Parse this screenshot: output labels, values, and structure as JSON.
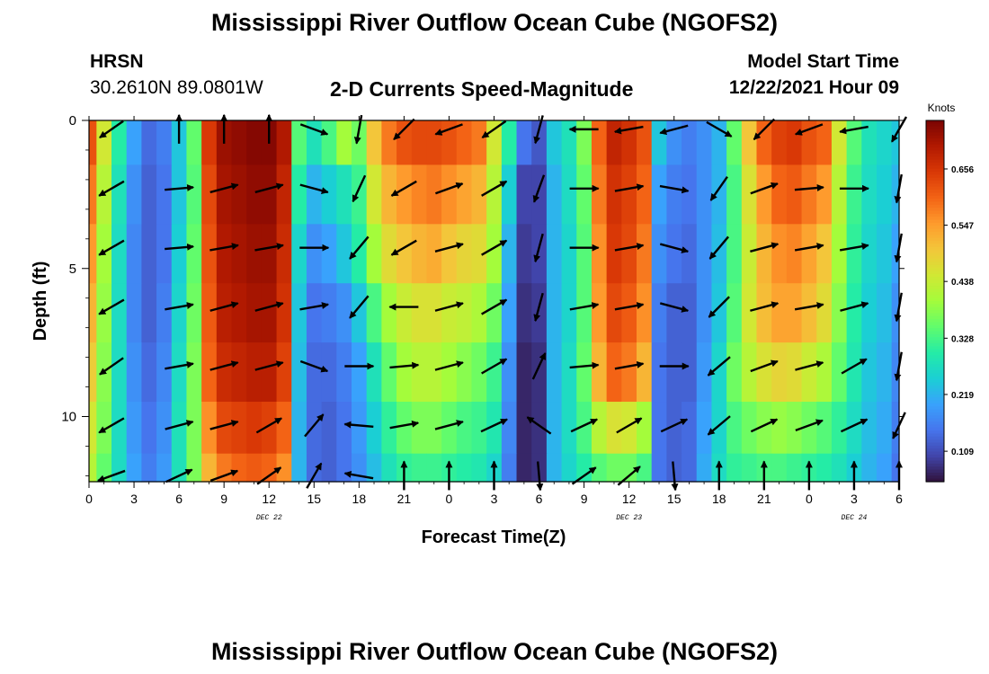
{
  "page": {
    "title": "Mississippi River Outflow Ocean Cube (NGOFS2)",
    "title_bottom": "Mississippi River Outflow Ocean Cube (NGOFS2)",
    "station_code": "HRSN",
    "station_coords": "30.2610N  89.0801W",
    "subtitle": "2-D Currents Speed-Magnitude",
    "model_start_label": "Model Start Time",
    "model_start_value": "12/22/2021 Hour 09"
  },
  "chart_data": {
    "type": "heatmap",
    "title": "2-D Currents Speed-Magnitude",
    "xlabel": "Forecast Time(Z)",
    "ylabel": "Depth (ft)",
    "xlim": [
      0,
      54
    ],
    "ylim": [
      0,
      12.2
    ],
    "y_inverted": true,
    "x_ticks": [
      0,
      3,
      6,
      9,
      12,
      15,
      18,
      21,
      24,
      27,
      30,
      33,
      36,
      39,
      42,
      45,
      48,
      51,
      54
    ],
    "x_tick_labels": [
      "0",
      "3",
      "6",
      "9",
      "12",
      "15",
      "18",
      "21",
      "0",
      "3",
      "6",
      "9",
      "12",
      "15",
      "18",
      "21",
      "0",
      "3",
      "6"
    ],
    "y_ticks": [
      0,
      5,
      10
    ],
    "y_tick_labels": [
      "0",
      "5",
      "10"
    ],
    "date_labels": [
      {
        "x": 12,
        "text": "DEC 22"
      },
      {
        "x": 36,
        "text": "DEC 23"
      },
      {
        "x": 51,
        "text": "DEC 24"
      }
    ],
    "colorbar": {
      "label": "Knots",
      "ticks": [
        0.109,
        0.219,
        0.328,
        0.438,
        0.547,
        0.656
      ],
      "tick_labels": [
        "0.109",
        "0.219",
        "0.328",
        "0.438",
        "0.547",
        "0.656"
      ],
      "min": 0.05,
      "max": 0.75,
      "colors": [
        "#30123b",
        "#4145ab",
        "#4675ed",
        "#39a2fc",
        "#1bcfd4",
        "#24eca6",
        "#61fc6c",
        "#a4fc3b",
        "#d1e834",
        "#f3c63a",
        "#fe9b2d",
        "#f36315",
        "#d93806",
        "#b11901",
        "#7a0402"
      ]
    },
    "depths": [
      0.5,
      2.5,
      4.5,
      6.5,
      8.5,
      10.5,
      12.0
    ],
    "times": [
      0,
      1,
      2,
      3,
      4,
      5,
      6,
      7,
      8,
      9,
      10,
      11,
      12,
      13,
      14,
      15,
      16,
      17,
      18,
      19,
      20,
      21,
      22,
      23,
      24,
      25,
      26,
      27,
      28,
      29,
      30,
      31,
      32,
      33,
      34,
      35,
      36,
      37,
      38,
      39,
      40,
      41,
      42,
      43,
      44,
      45,
      46,
      47,
      48,
      49,
      50,
      51,
      52,
      53,
      54
    ],
    "speed_rows": [
      [
        0.62,
        0.45,
        0.3,
        0.2,
        0.14,
        0.16,
        0.24,
        0.35,
        0.65,
        0.72,
        0.73,
        0.74,
        0.74,
        0.7,
        0.34,
        0.28,
        0.33,
        0.4,
        0.36,
        0.5,
        0.58,
        0.62,
        0.63,
        0.63,
        0.62,
        0.6,
        0.58,
        0.45,
        0.3,
        0.15,
        0.12,
        0.24,
        0.28,
        0.37,
        0.6,
        0.68,
        0.66,
        0.62,
        0.24,
        0.18,
        0.16,
        0.18,
        0.22,
        0.35,
        0.5,
        0.6,
        0.64,
        0.65,
        0.62,
        0.6,
        0.45,
        0.34,
        0.28,
        0.26,
        0.24
      ],
      [
        0.58,
        0.42,
        0.28,
        0.18,
        0.13,
        0.15,
        0.24,
        0.34,
        0.63,
        0.71,
        0.72,
        0.73,
        0.73,
        0.68,
        0.3,
        0.22,
        0.25,
        0.28,
        0.32,
        0.45,
        0.52,
        0.55,
        0.57,
        0.58,
        0.56,
        0.54,
        0.52,
        0.42,
        0.25,
        0.1,
        0.1,
        0.22,
        0.27,
        0.35,
        0.58,
        0.66,
        0.64,
        0.6,
        0.2,
        0.16,
        0.15,
        0.18,
        0.22,
        0.33,
        0.46,
        0.55,
        0.6,
        0.61,
        0.58,
        0.55,
        0.42,
        0.32,
        0.27,
        0.25,
        0.22
      ],
      [
        0.55,
        0.4,
        0.27,
        0.17,
        0.13,
        0.15,
        0.25,
        0.35,
        0.62,
        0.7,
        0.71,
        0.72,
        0.72,
        0.67,
        0.26,
        0.18,
        0.2,
        0.24,
        0.3,
        0.4,
        0.47,
        0.5,
        0.52,
        0.53,
        0.5,
        0.48,
        0.47,
        0.4,
        0.22,
        0.09,
        0.1,
        0.22,
        0.26,
        0.34,
        0.56,
        0.65,
        0.63,
        0.58,
        0.18,
        0.15,
        0.14,
        0.18,
        0.23,
        0.33,
        0.44,
        0.52,
        0.56,
        0.57,
        0.54,
        0.5,
        0.4,
        0.31,
        0.26,
        0.24,
        0.2
      ],
      [
        0.52,
        0.39,
        0.27,
        0.17,
        0.13,
        0.16,
        0.26,
        0.36,
        0.61,
        0.69,
        0.7,
        0.71,
        0.71,
        0.66,
        0.24,
        0.15,
        0.16,
        0.18,
        0.24,
        0.33,
        0.4,
        0.44,
        0.46,
        0.46,
        0.44,
        0.43,
        0.41,
        0.36,
        0.2,
        0.08,
        0.09,
        0.22,
        0.26,
        0.34,
        0.55,
        0.63,
        0.61,
        0.56,
        0.16,
        0.13,
        0.13,
        0.18,
        0.24,
        0.34,
        0.45,
        0.51,
        0.54,
        0.54,
        0.51,
        0.47,
        0.38,
        0.3,
        0.25,
        0.23,
        0.18
      ],
      [
        0.49,
        0.38,
        0.27,
        0.18,
        0.14,
        0.17,
        0.27,
        0.37,
        0.6,
        0.67,
        0.68,
        0.69,
        0.69,
        0.64,
        0.23,
        0.14,
        0.14,
        0.16,
        0.2,
        0.28,
        0.35,
        0.4,
        0.42,
        0.42,
        0.4,
        0.38,
        0.36,
        0.32,
        0.18,
        0.07,
        0.08,
        0.22,
        0.27,
        0.35,
        0.52,
        0.6,
        0.58,
        0.52,
        0.15,
        0.13,
        0.13,
        0.19,
        0.26,
        0.36,
        0.42,
        0.46,
        0.48,
        0.47,
        0.44,
        0.41,
        0.35,
        0.29,
        0.24,
        0.22,
        0.17
      ],
      [
        0.45,
        0.37,
        0.27,
        0.19,
        0.15,
        0.18,
        0.28,
        0.37,
        0.56,
        0.63,
        0.64,
        0.65,
        0.64,
        0.6,
        0.22,
        0.14,
        0.13,
        0.15,
        0.19,
        0.25,
        0.31,
        0.35,
        0.37,
        0.37,
        0.35,
        0.33,
        0.32,
        0.29,
        0.17,
        0.07,
        0.08,
        0.22,
        0.27,
        0.33,
        0.42,
        0.46,
        0.45,
        0.4,
        0.15,
        0.13,
        0.14,
        0.2,
        0.26,
        0.33,
        0.36,
        0.38,
        0.39,
        0.38,
        0.36,
        0.34,
        0.31,
        0.27,
        0.23,
        0.21,
        0.16
      ],
      [
        0.42,
        0.35,
        0.27,
        0.2,
        0.16,
        0.19,
        0.28,
        0.37,
        0.52,
        0.58,
        0.6,
        0.61,
        0.6,
        0.56,
        0.22,
        0.14,
        0.13,
        0.15,
        0.18,
        0.23,
        0.28,
        0.31,
        0.32,
        0.32,
        0.31,
        0.3,
        0.29,
        0.26,
        0.16,
        0.07,
        0.08,
        0.22,
        0.26,
        0.3,
        0.34,
        0.36,
        0.36,
        0.33,
        0.15,
        0.13,
        0.14,
        0.21,
        0.27,
        0.31,
        0.32,
        0.33,
        0.33,
        0.32,
        0.31,
        0.3,
        0.28,
        0.25,
        0.22,
        0.2,
        0.15
      ]
    ],
    "vectors_note": "current direction arrows drawn at each forecast hour and depth (directions in degrees, math convention)",
    "arrow_depths": [
      0.3,
      2.3,
      4.3,
      6.3,
      8.3,
      10.3,
      12.0
    ],
    "arrow_times": [
      1.5,
      6.0,
      9.0,
      12.0,
      15.0,
      18.0,
      21.0,
      24.0,
      27.0,
      30.0,
      33.0,
      36.0,
      39.0,
      42.0,
      45.0,
      48.0,
      51.0,
      54.0
    ],
    "arrow_dirs": [
      [
        215,
        90,
        90,
        90,
        340,
        260,
        225,
        200,
        215,
        255,
        180,
        190,
        195,
        330,
        225,
        200,
        190,
        240
      ],
      [
        210,
        5,
        15,
        15,
        345,
        245,
        210,
        20,
        30,
        250,
        0,
        10,
        350,
        235,
        20,
        5,
        0,
        260
      ],
      [
        210,
        5,
        10,
        10,
        0,
        230,
        210,
        15,
        30,
        255,
        0,
        10,
        345,
        230,
        15,
        10,
        10,
        260
      ],
      [
        210,
        10,
        15,
        15,
        10,
        230,
        180,
        15,
        30,
        255,
        10,
        10,
        345,
        225,
        15,
        10,
        15,
        260
      ],
      [
        215,
        10,
        15,
        15,
        340,
        0,
        5,
        15,
        30,
        65,
        5,
        10,
        0,
        220,
        20,
        15,
        30,
        260
      ],
      [
        210,
        15,
        15,
        30,
        50,
        175,
        10,
        15,
        25,
        145,
        25,
        30,
        25,
        220,
        25,
        20,
        25,
        245
      ],
      [
        200,
        25,
        20,
        35,
        60,
        170,
        90,
        90,
        90,
        275,
        35,
        40,
        275,
        90,
        90,
        90,
        90,
        90
      ]
    ]
  }
}
